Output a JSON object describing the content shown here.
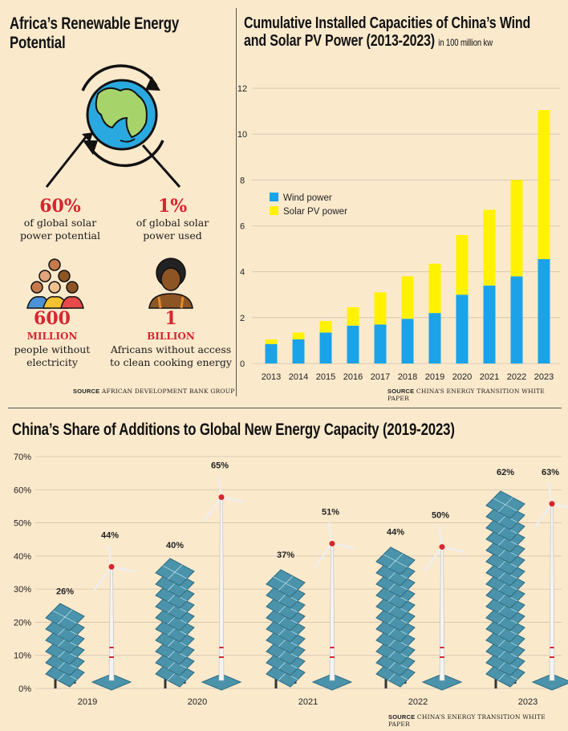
{
  "africa": {
    "title": "Africa’s Renewable Energy Potential",
    "stats": [
      {
        "value": "60%",
        "unit": "",
        "line1": "of global solar",
        "line2": "power potential"
      },
      {
        "value": "1%",
        "unit": "",
        "line1": "of global solar",
        "line2": "power used"
      },
      {
        "value": "600",
        "unit": "MILLION",
        "line1": "people without",
        "line2": "electricity"
      },
      {
        "value": "1",
        "unit": "BILLION",
        "line1": "Africans without access",
        "line2": "to clean cooking energy"
      }
    ],
    "source_label": "SOURCE",
    "source_text": "AFRICAN DEVELOPMENT BANK GROUP"
  },
  "source_right": {
    "label": "SOURCE",
    "text": "CHINA’S ENERGY TRANSITION WHITE PAPER"
  },
  "source_bottom": {
    "label": "SOURCE",
    "text": "CHINA’S ENERGY TRANSITION WHITE PAPER"
  },
  "colors": {
    "background": "#fbe9cc",
    "wind": "#1aa3e8",
    "solar": "#fff200",
    "accent_red": "#d7262e",
    "panel": "#4a93ab"
  },
  "chart_data": [
    {
      "type": "bar",
      "stacked": true,
      "title": "Cumulative Installed Capacities of China’s Wind and Solar PV Power (2013-2023)",
      "title_line1": "Cumulative Installed Capacities of China’s Wind",
      "title_line2": "and Solar PV Power (2013-2023)",
      "unit": "in 100 million kw",
      "categories": [
        "2013",
        "2014",
        "2015",
        "2016",
        "2017",
        "2018",
        "2019",
        "2020",
        "2021",
        "2022",
        "2023"
      ],
      "series": [
        {
          "name": "Wind power",
          "values": [
            0.85,
            1.05,
            1.35,
            1.65,
            1.7,
            1.95,
            2.2,
            3.0,
            3.4,
            3.8,
            4.55
          ]
        },
        {
          "name": "Solar PV power",
          "values": [
            0.2,
            0.3,
            0.5,
            0.8,
            1.4,
            1.85,
            2.15,
            2.6,
            3.3,
            4.2,
            6.5
          ]
        }
      ],
      "yticks": [
        0,
        2,
        4,
        6,
        8,
        10,
        12
      ],
      "ylim": [
        0,
        12
      ],
      "legend_position": "top-left"
    },
    {
      "type": "bar",
      "title": "China’s Share of Additions to Global New Energy Capacity (2019-2023)",
      "categories": [
        "2019",
        "2020",
        "2021",
        "2022",
        "2023"
      ],
      "series": [
        {
          "name": "Solar",
          "values": [
            26,
            40,
            37,
            44,
            62
          ]
        },
        {
          "name": "Wind",
          "values": [
            44,
            65,
            51,
            50,
            63
          ]
        }
      ],
      "labels": {
        "solar": [
          "26%",
          "40%",
          "37%",
          "44%",
          "62%"
        ],
        "wind": [
          "44%",
          "65%",
          "51%",
          "50%",
          "63%"
        ]
      },
      "yticks": [
        "0%",
        "10%",
        "20%",
        "30%",
        "40%",
        "50%",
        "60%",
        "70%"
      ],
      "ylim": [
        0,
        70
      ]
    }
  ]
}
